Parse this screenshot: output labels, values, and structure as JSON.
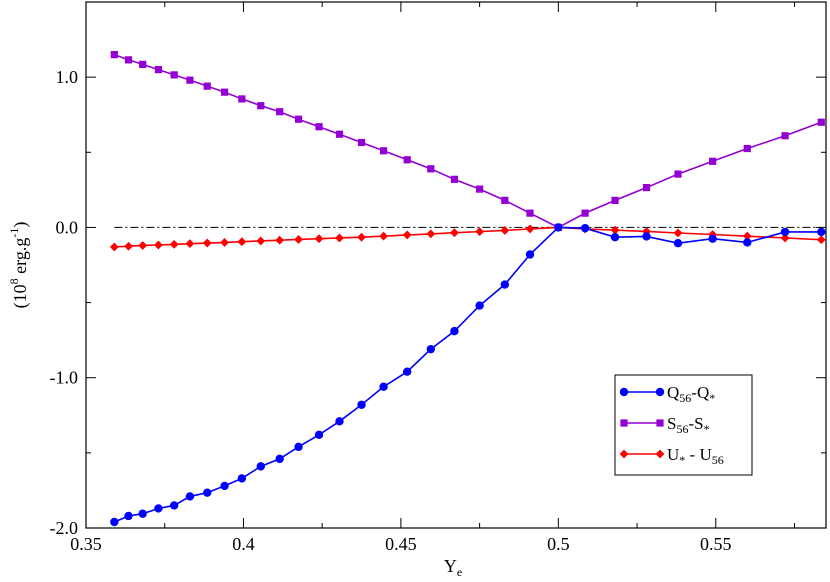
{
  "chart_data": {
    "type": "line",
    "title": "",
    "xlabel": {
      "main": "Y",
      "sub": "e"
    },
    "ylabel": {
      "open": "(10",
      "exp": "8",
      "unit": " erg.g",
      "unit_exp": "-1",
      "close": ")"
    },
    "xlim": [
      0.35,
      0.585
    ],
    "ylim": [
      -2.0,
      1.5
    ],
    "x_ticks": [
      0.35,
      0.4,
      0.45,
      0.5,
      0.55
    ],
    "x_tick_labels": [
      "0.35",
      "0.4",
      "0.45",
      "0.5",
      "0.55"
    ],
    "y_ticks": [
      -2.0,
      -1.0,
      0.0,
      1.0
    ],
    "y_tick_labels": [
      "-2.0",
      "-1.0",
      "0.0",
      "1.0"
    ],
    "reference_line": {
      "y": 0.0,
      "style": "dash-dot",
      "color": "#000000"
    },
    "grid": false,
    "legend_position": "bottom-right",
    "series": [
      {
        "name": "Q56-Q*",
        "legend": {
          "a": "Q",
          "a_sub": "56",
          "mid": "-Q",
          "b_sub": "*"
        },
        "color": "#0000ff",
        "marker": "circle",
        "x": [
          0.359,
          0.3635,
          0.368,
          0.373,
          0.378,
          0.383,
          0.3885,
          0.394,
          0.3995,
          0.4055,
          0.4115,
          0.4175,
          0.424,
          0.4305,
          0.4375,
          0.4445,
          0.452,
          0.4595,
          0.467,
          0.475,
          0.483,
          0.491,
          0.5,
          0.5085,
          0.518,
          0.528,
          0.538,
          0.549,
          0.56,
          0.572,
          0.5835
        ],
        "y": [
          -1.96,
          -1.92,
          -1.905,
          -1.87,
          -1.85,
          -1.79,
          -1.765,
          -1.72,
          -1.67,
          -1.59,
          -1.54,
          -1.46,
          -1.38,
          -1.29,
          -1.18,
          -1.06,
          -0.96,
          -0.81,
          -0.69,
          -0.52,
          -0.38,
          -0.18,
          0.0,
          -0.005,
          -0.065,
          -0.06,
          -0.105,
          -0.075,
          -0.1,
          -0.03,
          -0.03
        ]
      },
      {
        "name": "S56-S*",
        "legend": {
          "a": "S",
          "a_sub": "56",
          "mid": "-S",
          "b_sub": "*"
        },
        "color": "#9400d3",
        "marker": "square",
        "x": [
          0.359,
          0.3635,
          0.368,
          0.373,
          0.378,
          0.383,
          0.3885,
          0.394,
          0.3995,
          0.4055,
          0.4115,
          0.4175,
          0.424,
          0.4305,
          0.4375,
          0.4445,
          0.452,
          0.4595,
          0.467,
          0.475,
          0.483,
          0.491,
          0.5,
          0.5085,
          0.518,
          0.528,
          0.538,
          0.549,
          0.56,
          0.572,
          0.5835
        ],
        "y": [
          1.15,
          1.115,
          1.085,
          1.05,
          1.015,
          0.98,
          0.94,
          0.9,
          0.855,
          0.81,
          0.77,
          0.72,
          0.67,
          0.62,
          0.565,
          0.51,
          0.45,
          0.39,
          0.32,
          0.255,
          0.18,
          0.095,
          0.0,
          0.095,
          0.18,
          0.265,
          0.355,
          0.44,
          0.525,
          0.61,
          0.7
        ]
      },
      {
        "name": "U* - U56",
        "legend": {
          "a": "U",
          "a_sub": "*",
          "mid": " - U",
          "b_sub": "56"
        },
        "color": "#ff0000",
        "marker": "diamond",
        "x": [
          0.359,
          0.3635,
          0.368,
          0.373,
          0.378,
          0.383,
          0.3885,
          0.394,
          0.3995,
          0.4055,
          0.4115,
          0.4175,
          0.424,
          0.4305,
          0.4375,
          0.4445,
          0.452,
          0.4595,
          0.467,
          0.475,
          0.483,
          0.491,
          0.5,
          0.5085,
          0.518,
          0.528,
          0.538,
          0.549,
          0.56,
          0.572,
          0.5835
        ],
        "y": [
          -0.13,
          -0.125,
          -0.12,
          -0.117,
          -0.113,
          -0.108,
          -0.104,
          -0.1,
          -0.095,
          -0.09,
          -0.085,
          -0.08,
          -0.075,
          -0.07,
          -0.065,
          -0.058,
          -0.05,
          -0.043,
          -0.035,
          -0.028,
          -0.02,
          -0.01,
          0.0,
          -0.01,
          -0.018,
          -0.027,
          -0.037,
          -0.047,
          -0.058,
          -0.07,
          -0.082
        ]
      }
    ]
  }
}
